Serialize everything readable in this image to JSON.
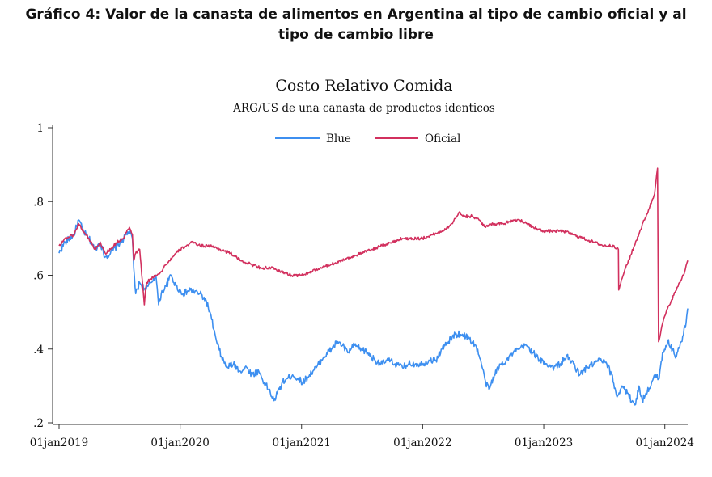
{
  "heading": {
    "line1": "Gráfico 4: Valor de la canasta de alimentos en Argentina al tipo de cambio oficial y al",
    "line2": "tipo de cambio libre"
  },
  "chart_data": {
    "type": "line",
    "title": "Costo Relativo Comida",
    "subtitle": "ARG/US de una canasta de productos identicos",
    "xlabel": "",
    "ylabel": "",
    "xlim": [
      "2019-01-01",
      "2024-03-10"
    ],
    "ylim": [
      0.2,
      1.0
    ],
    "x_ticks": [
      "2019-01-01",
      "2020-01-01",
      "2021-01-01",
      "2022-01-01",
      "2023-01-01",
      "2024-01-01"
    ],
    "x_tick_labels": [
      "01jan2019",
      "01jan2020",
      "01jan2021",
      "01jan2022",
      "01jan2023",
      "01jan2024"
    ],
    "y_ticks": [
      0.2,
      0.4,
      0.6,
      0.8,
      1.0
    ],
    "y_tick_labels": [
      ".2",
      ".4",
      ".6",
      ".8",
      "1"
    ],
    "grid": false,
    "legend_position": "top-center",
    "series": [
      {
        "name": "Blue",
        "color": "#3d8ff0",
        "points": [
          [
            "2019-01-01",
            0.66
          ],
          [
            "2019-01-20",
            0.69
          ],
          [
            "2019-02-15",
            0.71
          ],
          [
            "2019-03-01",
            0.75
          ],
          [
            "2019-03-15",
            0.72
          ],
          [
            "2019-04-01",
            0.7
          ],
          [
            "2019-04-20",
            0.67
          ],
          [
            "2019-05-05",
            0.69
          ],
          [
            "2019-05-20",
            0.65
          ],
          [
            "2019-06-05",
            0.66
          ],
          [
            "2019-06-25",
            0.68
          ],
          [
            "2019-07-15",
            0.7
          ],
          [
            "2019-08-01",
            0.72
          ],
          [
            "2019-08-10",
            0.7
          ],
          [
            "2019-08-14",
            0.62
          ],
          [
            "2019-08-20",
            0.55
          ],
          [
            "2019-09-01",
            0.58
          ],
          [
            "2019-09-20",
            0.56
          ],
          [
            "2019-10-05",
            0.58
          ],
          [
            "2019-10-20",
            0.6
          ],
          [
            "2019-10-28",
            0.52
          ],
          [
            "2019-11-05",
            0.55
          ],
          [
            "2019-11-20",
            0.57
          ],
          [
            "2019-12-05",
            0.6
          ],
          [
            "2019-12-20",
            0.57
          ],
          [
            "2020-01-10",
            0.55
          ],
          [
            "2020-02-01",
            0.56
          ],
          [
            "2020-03-01",
            0.55
          ],
          [
            "2020-03-20",
            0.53
          ],
          [
            "2020-04-05",
            0.48
          ],
          [
            "2020-04-20",
            0.42
          ],
          [
            "2020-05-05",
            0.38
          ],
          [
            "2020-05-20",
            0.35
          ],
          [
            "2020-06-10",
            0.36
          ],
          [
            "2020-07-01",
            0.34
          ],
          [
            "2020-07-20",
            0.35
          ],
          [
            "2020-08-05",
            0.33
          ],
          [
            "2020-08-25",
            0.34
          ],
          [
            "2020-09-10",
            0.31
          ],
          [
            "2020-09-25",
            0.29
          ],
          [
            "2020-10-10",
            0.26
          ],
          [
            "2020-10-20",
            0.28
          ],
          [
            "2020-11-05",
            0.31
          ],
          [
            "2020-11-20",
            0.32
          ],
          [
            "2020-12-05",
            0.33
          ],
          [
            "2020-12-20",
            0.32
          ],
          [
            "2021-01-05",
            0.31
          ],
          [
            "2021-01-25",
            0.33
          ],
          [
            "2021-02-15",
            0.35
          ],
          [
            "2021-03-10",
            0.38
          ],
          [
            "2021-04-01",
            0.4
          ],
          [
            "2021-04-20",
            0.42
          ],
          [
            "2021-05-05",
            0.41
          ],
          [
            "2021-05-20",
            0.39
          ],
          [
            "2021-06-10",
            0.41
          ],
          [
            "2021-07-01",
            0.4
          ],
          [
            "2021-07-20",
            0.39
          ],
          [
            "2021-08-10",
            0.37
          ],
          [
            "2021-09-01",
            0.36
          ],
          [
            "2021-09-20",
            0.37
          ],
          [
            "2021-10-10",
            0.36
          ],
          [
            "2021-11-01",
            0.35
          ],
          [
            "2021-11-20",
            0.36
          ],
          [
            "2021-12-10",
            0.36
          ],
          [
            "2022-01-01",
            0.36
          ],
          [
            "2022-01-20",
            0.37
          ],
          [
            "2022-02-10",
            0.37
          ],
          [
            "2022-03-01",
            0.4
          ],
          [
            "2022-03-20",
            0.42
          ],
          [
            "2022-04-10",
            0.44
          ],
          [
            "2022-05-01",
            0.44
          ],
          [
            "2022-05-20",
            0.43
          ],
          [
            "2022-06-10",
            0.41
          ],
          [
            "2022-06-25",
            0.37
          ],
          [
            "2022-07-10",
            0.31
          ],
          [
            "2022-07-20",
            0.29
          ],
          [
            "2022-08-05",
            0.33
          ],
          [
            "2022-08-25",
            0.36
          ],
          [
            "2022-09-10",
            0.37
          ],
          [
            "2022-10-01",
            0.39
          ],
          [
            "2022-10-20",
            0.4
          ],
          [
            "2022-11-10",
            0.41
          ],
          [
            "2022-12-01",
            0.39
          ],
          [
            "2022-12-20",
            0.37
          ],
          [
            "2023-01-10",
            0.36
          ],
          [
            "2023-02-01",
            0.35
          ],
          [
            "2023-02-20",
            0.36
          ],
          [
            "2023-03-10",
            0.38
          ],
          [
            "2023-04-01",
            0.36
          ],
          [
            "2023-04-20",
            0.33
          ],
          [
            "2023-05-10",
            0.35
          ],
          [
            "2023-06-01",
            0.36
          ],
          [
            "2023-06-20",
            0.37
          ],
          [
            "2023-07-10",
            0.36
          ],
          [
            "2023-07-25",
            0.33
          ],
          [
            "2023-08-10",
            0.27
          ],
          [
            "2023-08-25",
            0.3
          ],
          [
            "2023-09-10",
            0.28
          ],
          [
            "2023-09-25",
            0.26
          ],
          [
            "2023-10-05",
            0.25
          ],
          [
            "2023-10-15",
            0.3
          ],
          [
            "2023-10-25",
            0.26
          ],
          [
            "2023-11-05",
            0.28
          ],
          [
            "2023-11-20",
            0.3
          ],
          [
            "2023-12-05",
            0.33
          ],
          [
            "2023-12-15",
            0.32
          ],
          [
            "2023-12-25",
            0.39
          ],
          [
            "2024-01-10",
            0.42
          ],
          [
            "2024-01-25",
            0.4
          ],
          [
            "2024-02-05",
            0.38
          ],
          [
            "2024-02-20",
            0.42
          ],
          [
            "2024-03-05",
            0.47
          ],
          [
            "2024-03-10",
            0.51
          ]
        ]
      },
      {
        "name": "Oficial",
        "color": "#d2305e",
        "points": [
          [
            "2019-01-01",
            0.68
          ],
          [
            "2019-01-20",
            0.7
          ],
          [
            "2019-02-15",
            0.71
          ],
          [
            "2019-03-01",
            0.74
          ],
          [
            "2019-03-15",
            0.72
          ],
          [
            "2019-04-01",
            0.7
          ],
          [
            "2019-04-20",
            0.67
          ],
          [
            "2019-05-05",
            0.69
          ],
          [
            "2019-05-20",
            0.66
          ],
          [
            "2019-06-05",
            0.67
          ],
          [
            "2019-06-25",
            0.69
          ],
          [
            "2019-07-15",
            0.7
          ],
          [
            "2019-08-01",
            0.73
          ],
          [
            "2019-08-10",
            0.71
          ],
          [
            "2019-08-14",
            0.64
          ],
          [
            "2019-08-20",
            0.66
          ],
          [
            "2019-09-01",
            0.67
          ],
          [
            "2019-09-15",
            0.52
          ],
          [
            "2019-09-22",
            0.58
          ],
          [
            "2019-10-05",
            0.59
          ],
          [
            "2019-10-20",
            0.6
          ],
          [
            "2019-11-05",
            0.61
          ],
          [
            "2019-11-20",
            0.63
          ],
          [
            "2019-12-10",
            0.65
          ],
          [
            "2020-01-01",
            0.67
          ],
          [
            "2020-01-20",
            0.68
          ],
          [
            "2020-02-10",
            0.69
          ],
          [
            "2020-03-01",
            0.68
          ],
          [
            "2020-04-01",
            0.68
          ],
          [
            "2020-05-01",
            0.67
          ],
          [
            "2020-06-01",
            0.66
          ],
          [
            "2020-07-01",
            0.64
          ],
          [
            "2020-08-01",
            0.63
          ],
          [
            "2020-09-01",
            0.62
          ],
          [
            "2020-10-01",
            0.62
          ],
          [
            "2020-11-01",
            0.61
          ],
          [
            "2020-12-01",
            0.6
          ],
          [
            "2021-01-01",
            0.6
          ],
          [
            "2021-02-01",
            0.61
          ],
          [
            "2021-03-01",
            0.62
          ],
          [
            "2021-04-01",
            0.63
          ],
          [
            "2021-05-01",
            0.64
          ],
          [
            "2021-06-01",
            0.65
          ],
          [
            "2021-07-01",
            0.66
          ],
          [
            "2021-08-01",
            0.67
          ],
          [
            "2021-09-01",
            0.68
          ],
          [
            "2021-10-01",
            0.69
          ],
          [
            "2021-11-01",
            0.7
          ],
          [
            "2021-12-01",
            0.7
          ],
          [
            "2022-01-01",
            0.7
          ],
          [
            "2022-02-01",
            0.71
          ],
          [
            "2022-03-01",
            0.72
          ],
          [
            "2022-04-01",
            0.74
          ],
          [
            "2022-04-20",
            0.77
          ],
          [
            "2022-05-10",
            0.76
          ],
          [
            "2022-06-01",
            0.76
          ],
          [
            "2022-06-20",
            0.75
          ],
          [
            "2022-07-10",
            0.73
          ],
          [
            "2022-08-01",
            0.74
          ],
          [
            "2022-09-01",
            0.74
          ],
          [
            "2022-10-01",
            0.75
          ],
          [
            "2022-10-20",
            0.75
          ],
          [
            "2022-11-10",
            0.74
          ],
          [
            "2022-12-01",
            0.73
          ],
          [
            "2023-01-01",
            0.72
          ],
          [
            "2023-02-01",
            0.72
          ],
          [
            "2023-03-01",
            0.72
          ],
          [
            "2023-04-01",
            0.71
          ],
          [
            "2023-05-01",
            0.7
          ],
          [
            "2023-06-01",
            0.69
          ],
          [
            "2023-07-01",
            0.68
          ],
          [
            "2023-08-01",
            0.68
          ],
          [
            "2023-08-14",
            0.67
          ],
          [
            "2023-08-15",
            0.56
          ],
          [
            "2023-09-01",
            0.61
          ],
          [
            "2023-10-01",
            0.68
          ],
          [
            "2023-11-01",
            0.75
          ],
          [
            "2023-12-01",
            0.82
          ],
          [
            "2023-12-10",
            0.89
          ],
          [
            "2023-12-13",
            0.42
          ],
          [
            "2024-01-01",
            0.49
          ],
          [
            "2024-01-20",
            0.53
          ],
          [
            "2024-02-10",
            0.57
          ],
          [
            "2024-03-01",
            0.61
          ],
          [
            "2024-03-10",
            0.64
          ]
        ]
      }
    ]
  }
}
